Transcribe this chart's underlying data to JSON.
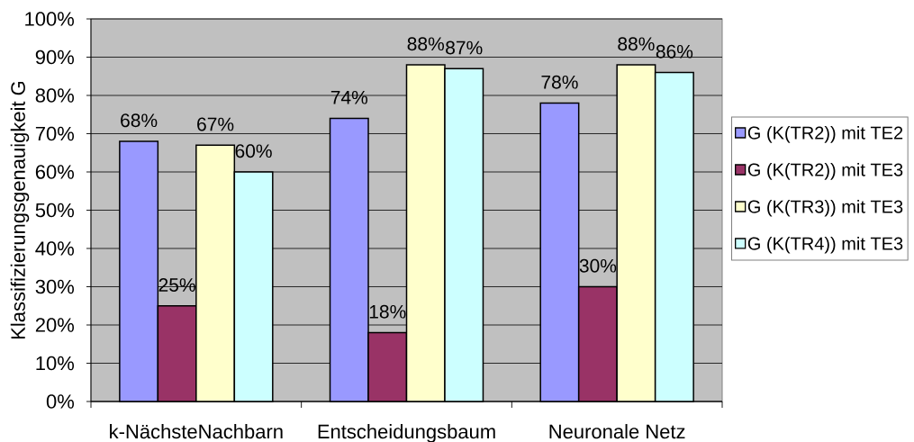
{
  "chart_data": {
    "type": "bar",
    "ylabel": "Klassifizierungsgenauigkeit G",
    "categories": [
      "k-NächsteNachbarn",
      "Entscheidungsbaum",
      "Neuronale Netz"
    ],
    "series": [
      {
        "name": "G (K(TR2)) mit TE2",
        "color": "#9999ff",
        "values": [
          68,
          74,
          78
        ],
        "value_labels": [
          "68%",
          "74%",
          "78%"
        ]
      },
      {
        "name": "G (K(TR2)) mit TE3",
        "color": "#993366",
        "values": [
          25,
          18,
          30
        ],
        "value_labels": [
          "25%",
          "18%",
          "30%"
        ]
      },
      {
        "name": "G (K(TR3)) mit TE3",
        "color": "#ffffcc",
        "values": [
          67,
          88,
          88
        ],
        "value_labels": [
          "67%",
          "88%",
          "88%"
        ]
      },
      {
        "name": "G (K(TR4)) mit TE3",
        "color": "#ccffff",
        "values": [
          60,
          87,
          86
        ],
        "value_labels": [
          "60%",
          "87%",
          "86%"
        ]
      }
    ],
    "ylim": [
      0,
      100
    ],
    "yticks": [
      {
        "value": 0,
        "label": "0%"
      },
      {
        "value": 10,
        "label": "10%"
      },
      {
        "value": 20,
        "label": "20%"
      },
      {
        "value": 30,
        "label": "30%"
      },
      {
        "value": 40,
        "label": "40%"
      },
      {
        "value": 50,
        "label": "50%"
      },
      {
        "value": 60,
        "label": "60%"
      },
      {
        "value": 70,
        "label": "70%"
      },
      {
        "value": 80,
        "label": "80%"
      },
      {
        "value": 90,
        "label": "90%"
      },
      {
        "value": 100,
        "label": "100%"
      }
    ],
    "grid": "y",
    "legend": "right"
  }
}
